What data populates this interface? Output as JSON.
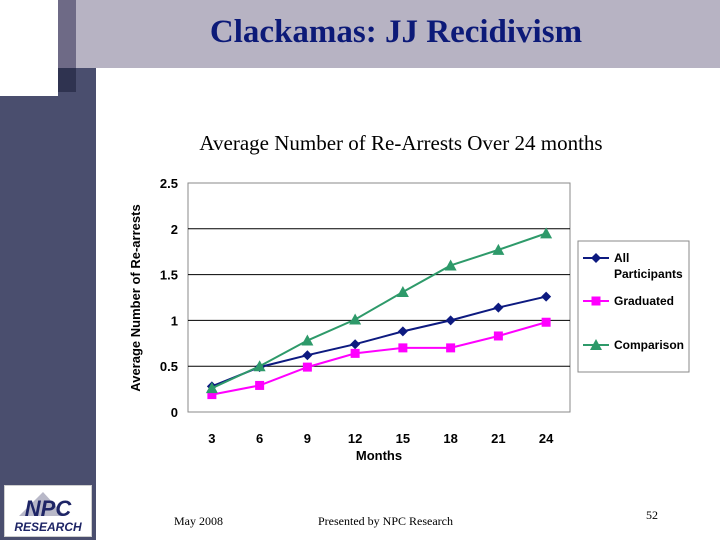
{
  "slide": {
    "title": "Clackamas: JJ Recidivism",
    "footer_date": "May 2008",
    "footer_presenter": "Presented by NPC Research",
    "slide_number": "52",
    "logo_text_main": "NPC",
    "logo_text_sub": "RESEARCH"
  },
  "chart_data": {
    "type": "line",
    "title": "Average Number of Re-Arrests Over 24 months",
    "xlabel": "Months",
    "ylabel": "Average Number of Re-arrests",
    "categories": [
      "3",
      "6",
      "9",
      "12",
      "15",
      "18",
      "21",
      "24"
    ],
    "ylim": [
      0,
      2.5
    ],
    "yticks": [
      0,
      0.5,
      1,
      1.5,
      2,
      2.5
    ],
    "ytick_labels": [
      "0",
      "0.5",
      "1",
      "1.5",
      "2",
      "2.5"
    ],
    "grid": "horizontal",
    "legend_position": "right",
    "series": [
      {
        "name": "All Participants",
        "legend_lines": [
          "All",
          "Participants"
        ],
        "marker": "diamond",
        "color": "#0d1a80",
        "values": [
          0.28,
          0.49,
          0.62,
          0.74,
          0.88,
          1.0,
          1.14,
          1.26
        ]
      },
      {
        "name": "Graduated",
        "legend_lines": [
          "Graduated"
        ],
        "marker": "square",
        "color": "#ff00ff",
        "values": [
          0.19,
          0.29,
          0.49,
          0.64,
          0.7,
          0.7,
          0.83,
          0.98
        ]
      },
      {
        "name": "Comparison",
        "legend_lines": [
          "Comparison"
        ],
        "marker": "triangle",
        "color": "#2e9a6a",
        "values": [
          0.26,
          0.5,
          0.78,
          1.01,
          1.31,
          1.6,
          1.77,
          1.95
        ]
      }
    ]
  }
}
